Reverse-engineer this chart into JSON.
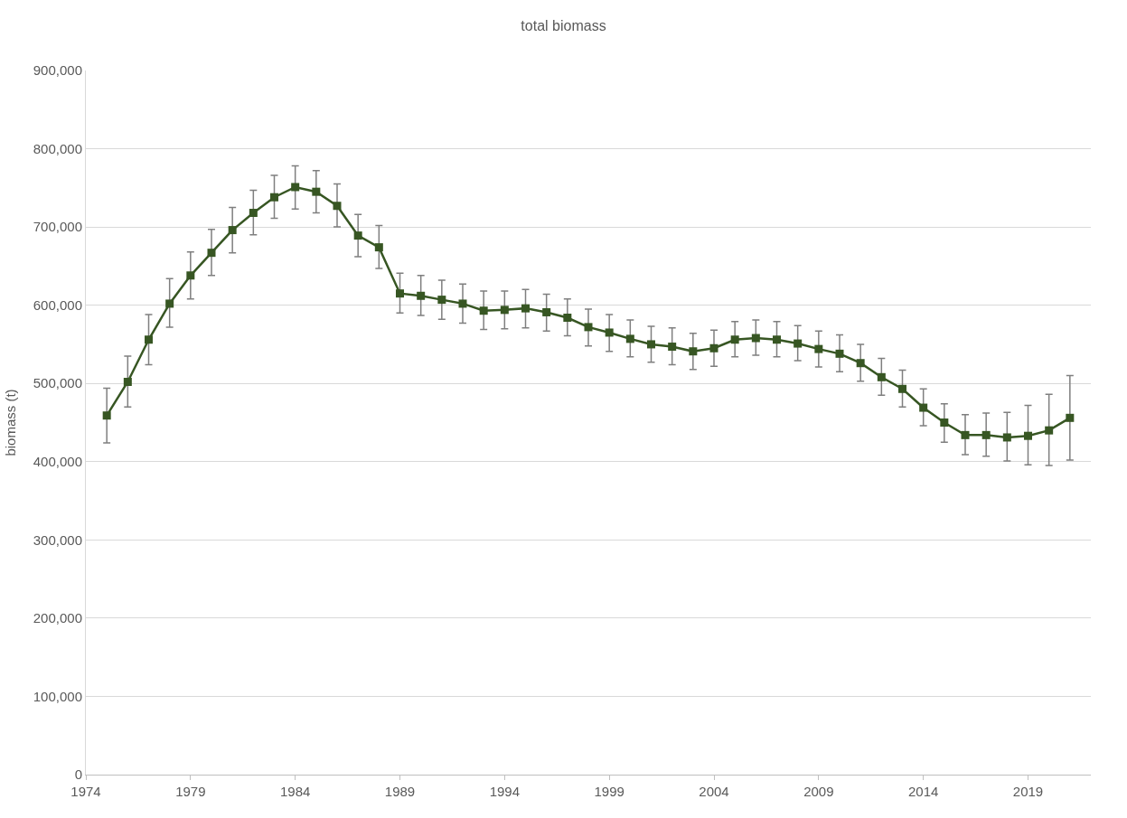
{
  "chart_data": {
    "type": "line",
    "title": "total biomass",
    "ylabel": "biomass (t)",
    "x": [
      1975,
      1976,
      1977,
      1978,
      1979,
      1980,
      1981,
      1982,
      1983,
      1984,
      1985,
      1986,
      1987,
      1988,
      1989,
      1990,
      1991,
      1992,
      1993,
      1994,
      1995,
      1996,
      1997,
      1998,
      1999,
      2000,
      2001,
      2002,
      2003,
      2004,
      2005,
      2006,
      2007,
      2008,
      2009,
      2010,
      2011,
      2012,
      2013,
      2014,
      2015,
      2016,
      2017,
      2018,
      2019,
      2020,
      2021
    ],
    "series": [
      {
        "color": "#375623",
        "values": [
          459000,
          502000,
          556000,
          602000,
          638000,
          667000,
          696000,
          718000,
          738000,
          751000,
          745000,
          727000,
          689000,
          674000,
          615000,
          612000,
          607000,
          602000,
          593000,
          594000,
          596000,
          591000,
          584000,
          572000,
          565000,
          557000,
          550000,
          547000,
          541000,
          545000,
          556000,
          558000,
          556000,
          551000,
          544000,
          538000,
          526000,
          508000,
          493000,
          469000,
          450000,
          434000,
          434000,
          431000,
          433000,
          440000,
          456000
        ],
        "errors": [
          [
            424000,
            494000
          ],
          [
            470000,
            535000
          ],
          [
            524000,
            588000
          ],
          [
            572000,
            634000
          ],
          [
            608000,
            668000
          ],
          [
            638000,
            697000
          ],
          [
            667000,
            725000
          ],
          [
            690000,
            747000
          ],
          [
            711000,
            766000
          ],
          [
            723000,
            778000
          ],
          [
            718000,
            772000
          ],
          [
            700000,
            755000
          ],
          [
            662000,
            716000
          ],
          [
            647000,
            702000
          ],
          [
            590000,
            641000
          ],
          [
            587000,
            638000
          ],
          [
            582000,
            632000
          ],
          [
            577000,
            627000
          ],
          [
            569000,
            618000
          ],
          [
            570000,
            618000
          ],
          [
            571000,
            620000
          ],
          [
            567000,
            614000
          ],
          [
            561000,
            608000
          ],
          [
            548000,
            595000
          ],
          [
            541000,
            588000
          ],
          [
            534000,
            581000
          ],
          [
            527000,
            573000
          ],
          [
            524000,
            571000
          ],
          [
            518000,
            564000
          ],
          [
            522000,
            568000
          ],
          [
            534000,
            579000
          ],
          [
            536000,
            581000
          ],
          [
            534000,
            579000
          ],
          [
            529000,
            574000
          ],
          [
            521000,
            567000
          ],
          [
            515000,
            562000
          ],
          [
            503000,
            550000
          ],
          [
            485000,
            532000
          ],
          [
            470000,
            517000
          ],
          [
            446000,
            493000
          ],
          [
            425000,
            474000
          ],
          [
            409000,
            460000
          ],
          [
            407000,
            462000
          ],
          [
            401000,
            463000
          ],
          [
            396000,
            472000
          ],
          [
            395000,
            486000
          ],
          [
            402000,
            510000
          ]
        ]
      }
    ],
    "xlim": [
      1974,
      2022
    ],
    "xticks": [
      1974,
      1979,
      1984,
      1989,
      1994,
      1999,
      2004,
      2009,
      2014,
      2019
    ],
    "ylim": [
      0,
      900000
    ],
    "yticks": [
      0,
      {
        "value": 100000,
        "label": "100,000"
      },
      {
        "value": 200000,
        "label": "200,000"
      },
      {
        "value": 300000,
        "label": "300,000"
      },
      {
        "value": 400000,
        "label": "400,000"
      },
      {
        "value": 500000,
        "label": "500,000"
      },
      {
        "value": 600000,
        "label": "600,000"
      },
      {
        "value": 700000,
        "label": "700,000"
      },
      {
        "value": 800000,
        "label": "800,000"
      },
      {
        "value": 900000,
        "label": "900,000"
      }
    ],
    "grid": "y",
    "legend": false,
    "marker": "square",
    "line_style": "solid"
  }
}
